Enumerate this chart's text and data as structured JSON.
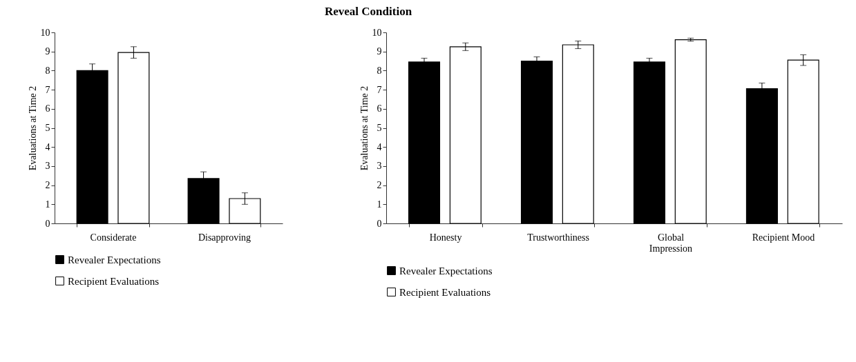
{
  "chart_data": [
    {
      "type": "bar",
      "ylabel": "Evaluations at Time 2",
      "categories": [
        "Considerate",
        "Disapproving"
      ],
      "ylim": [
        0,
        10
      ],
      "yticks": [
        0,
        1,
        2,
        3,
        4,
        5,
        6,
        7,
        8,
        9,
        10
      ],
      "grid": false,
      "legend": "bottom",
      "series": [
        {
          "name": "Revealer Expectations",
          "color": "#000000",
          "values": [
            8.0,
            2.35
          ],
          "errors": [
            0.35,
            0.35
          ]
        },
        {
          "name": "Recipient Evaluations",
          "color": "#ffffff",
          "values": [
            8.95,
            1.3
          ],
          "errors": [
            0.3,
            0.3
          ]
        }
      ]
    },
    {
      "type": "bar",
      "title": "Reveal Condition",
      "ylabel": "Evaluations at Time 2",
      "categories": [
        "Honesty",
        "Trustworthiness",
        "Global Impression",
        "Recipient Mood"
      ],
      "ylim": [
        0,
        10
      ],
      "yticks": [
        0,
        1,
        2,
        3,
        4,
        5,
        6,
        7,
        8,
        9,
        10
      ],
      "grid": false,
      "legend": "bottom",
      "series": [
        {
          "name": "Revealer Expectations",
          "color": "#000000",
          "values": [
            8.45,
            8.5,
            8.45,
            7.05
          ],
          "errors": [
            0.2,
            0.22,
            0.2,
            0.3
          ]
        },
        {
          "name": "Recipient Evaluations",
          "color": "#ffffff",
          "values": [
            9.25,
            9.35,
            9.62,
            8.55
          ],
          "errors": [
            0.2,
            0.2,
            0.08,
            0.28
          ]
        }
      ]
    }
  ]
}
